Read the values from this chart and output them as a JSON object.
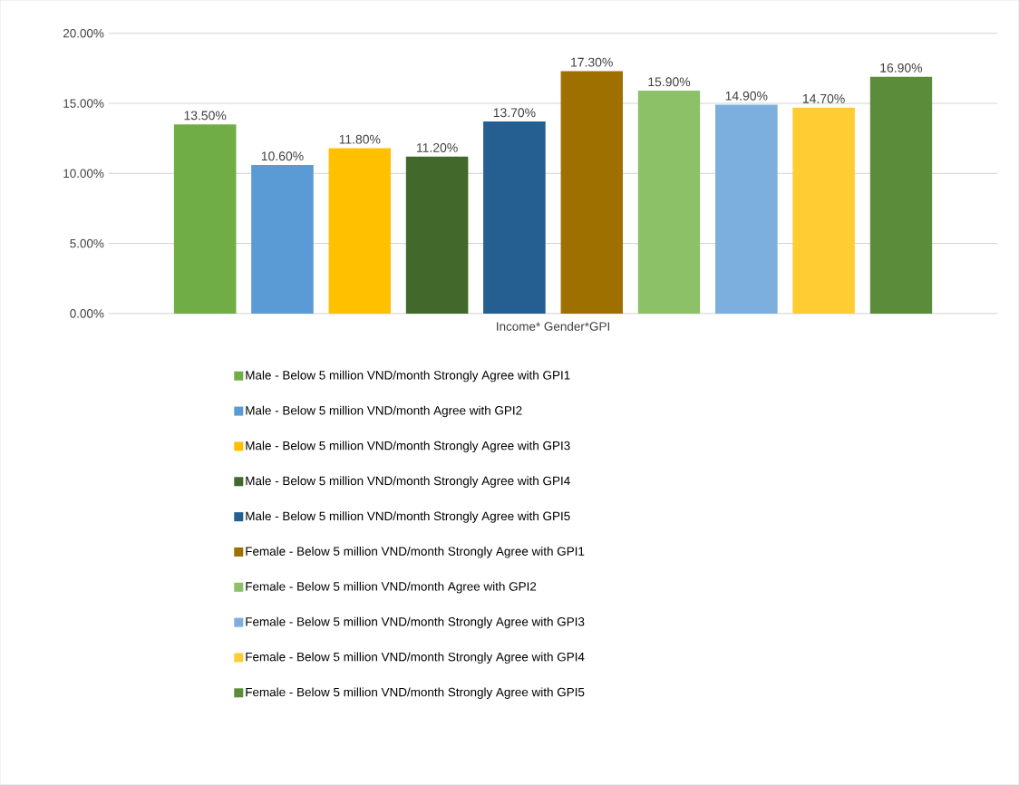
{
  "chart_data": {
    "type": "bar",
    "categories": [
      "Income* Gender*GPI"
    ],
    "series": [
      {
        "name": "Male - Below 5 million VND/month Strongly Agree with GPI1",
        "color": "#70ad47",
        "values": [
          13.5
        ],
        "value_labels": [
          "13.50%"
        ]
      },
      {
        "name": "Male - Below 5 million VND/month Agree with GPI2",
        "color": "#5b9bd5",
        "values": [
          10.6
        ],
        "value_labels": [
          "10.60%"
        ]
      },
      {
        "name": "Male - Below 5 million VND/month Strongly Agree with GPI3",
        "color": "#ffc000",
        "values": [
          11.8
        ],
        "value_labels": [
          "11.80%"
        ]
      },
      {
        "name": "Male - Below 5 million VND/month Strongly Agree with GPI4",
        "color": "#43682b",
        "values": [
          11.2
        ],
        "value_labels": [
          "11.20%"
        ]
      },
      {
        "name": "Male - Below 5 million VND/month Strongly Agree with GPI5",
        "color": "#255e91",
        "values": [
          13.7
        ],
        "value_labels": [
          "13.70%"
        ]
      },
      {
        "name": "Female - Below 5 million VND/month Strongly Agree with GPI1",
        "color": "#9e7000",
        "values": [
          17.3
        ],
        "value_labels": [
          "17.30%"
        ]
      },
      {
        "name": "Female - Below 5 million VND/month Agree with GPI2",
        "color": "#8cc168",
        "values": [
          15.9
        ],
        "value_labels": [
          "15.90%"
        ]
      },
      {
        "name": "Female - Below 5 million VND/month Strongly Agree with GPI3",
        "color": "#7cafdd",
        "values": [
          14.9
        ],
        "value_labels": [
          "14.90%"
        ]
      },
      {
        "name": "Female - Below 5 million VND/month Strongly Agree with GPI4",
        "color": "#ffcd33",
        "values": [
          14.7
        ],
        "value_labels": [
          "14.70%"
        ]
      },
      {
        "name": "Female - Below 5 million VND/month Strongly Agree with GPI5",
        "color": "#5b8c3a",
        "values": [
          16.9
        ],
        "value_labels": [
          "16.90%"
        ]
      }
    ],
    "ylim": [
      0,
      20
    ],
    "yticks": [
      {
        "value": 0,
        "label": "0.00%"
      },
      {
        "value": 5,
        "label": "5.00%"
      },
      {
        "value": 10,
        "label": "10.00%"
      },
      {
        "value": 15,
        "label": "15.00%"
      },
      {
        "value": 20,
        "label": "20.00%"
      }
    ],
    "grid": "y",
    "legend": "bottom"
  }
}
